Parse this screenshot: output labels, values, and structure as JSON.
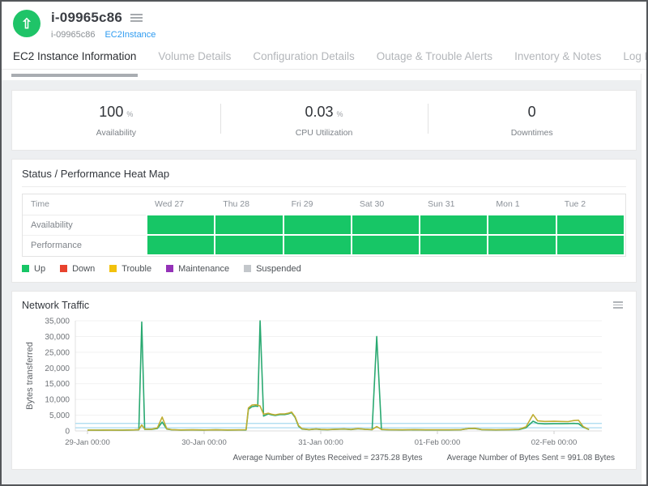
{
  "header": {
    "title": "i-09965c86",
    "subtitle": "i-09965c86",
    "type_link": "EC2Instance"
  },
  "tabs": [
    {
      "label": "EC2 Instance Information",
      "active": true
    },
    {
      "label": "Volume Details",
      "active": false
    },
    {
      "label": "Configuration Details",
      "active": false
    },
    {
      "label": "Outage & Trouble Alerts",
      "active": false
    },
    {
      "label": "Inventory & Notes",
      "active": false
    },
    {
      "label": "Log Report",
      "active": false
    }
  ],
  "stats": [
    {
      "value": "100",
      "unit": "%",
      "label": "Availability"
    },
    {
      "value": "0.03",
      "unit": "%",
      "label": "CPU Utilization"
    },
    {
      "value": "0",
      "unit": "",
      "label": "Downtimes"
    }
  ],
  "heatmap": {
    "title": "Status / Performance Heat Map",
    "columns": [
      "Time",
      "Wed 27",
      "Thu 28",
      "Fri 29",
      "Sat 30",
      "Sun 31",
      "Mon 1",
      "Tue 2"
    ],
    "rows": [
      {
        "label": "Availability",
        "cells": [
          "Up",
          "Up",
          "Up",
          "Up",
          "Up",
          "Up",
          "Up"
        ]
      },
      {
        "label": "Performance",
        "cells": [
          "Up",
          "Up",
          "Up",
          "Up",
          "Up",
          "Up",
          "Up"
        ]
      }
    ],
    "legend": [
      {
        "label": "Up",
        "color": "#17c666"
      },
      {
        "label": "Down",
        "color": "#e8432e"
      },
      {
        "label": "Trouble",
        "color": "#f2c10d"
      },
      {
        "label": "Maintenance",
        "color": "#9432b8"
      },
      {
        "label": "Suspended",
        "color": "#c3c7cb"
      }
    ]
  },
  "network": {
    "title": "Network Traffic",
    "avg_received_text": "Average Number of Bytes Received = 2375.28 Bytes",
    "avg_sent_text": "Average Number of Bytes Sent = 991.08 Bytes"
  },
  "chart_data": {
    "type": "line",
    "title": "Network Traffic",
    "xlabel": "",
    "ylabel": "Bytes transferred",
    "ylim": [
      0,
      35000
    ],
    "ytick_step": 5000,
    "grid": true,
    "x_ticks": [
      "29-Jan 00:00",
      "30-Jan 00:00",
      "31-Jan 00:00",
      "01-Feb 00:00",
      "02-Feb 00:00"
    ],
    "x_unit_days": true,
    "avg_lines": [
      {
        "name": "avg-bytes-received",
        "value": 2375.28,
        "color": "#a7daef"
      },
      {
        "name": "avg-bytes-sent",
        "value": 991.08,
        "color": "#a7daef"
      }
    ],
    "series": [
      {
        "name": "Bytes Received",
        "color": "#2aa971",
        "points": [
          [
            0.0,
            250
          ],
          [
            0.1,
            230
          ],
          [
            0.2,
            260
          ],
          [
            0.3,
            240
          ],
          [
            0.4,
            300
          ],
          [
            0.44,
            350
          ],
          [
            0.465,
            34600
          ],
          [
            0.49,
            500
          ],
          [
            0.55,
            500
          ],
          [
            0.6,
            800
          ],
          [
            0.64,
            2800
          ],
          [
            0.68,
            600
          ],
          [
            0.72,
            350
          ],
          [
            0.8,
            280
          ],
          [
            0.9,
            320
          ],
          [
            1.0,
            280
          ],
          [
            1.1,
            330
          ],
          [
            1.2,
            280
          ],
          [
            1.3,
            300
          ],
          [
            1.36,
            320
          ],
          [
            1.38,
            6900
          ],
          [
            1.41,
            7700
          ],
          [
            1.44,
            7900
          ],
          [
            1.46,
            7800
          ],
          [
            1.48,
            35000
          ],
          [
            1.51,
            4700
          ],
          [
            1.55,
            5400
          ],
          [
            1.58,
            5100
          ],
          [
            1.61,
            4900
          ],
          [
            1.65,
            5200
          ],
          [
            1.69,
            5200
          ],
          [
            1.72,
            5400
          ],
          [
            1.75,
            5800
          ],
          [
            1.78,
            4300
          ],
          [
            1.81,
            1500
          ],
          [
            1.84,
            600
          ],
          [
            1.9,
            400
          ],
          [
            1.96,
            600
          ],
          [
            2.0,
            450
          ],
          [
            2.06,
            400
          ],
          [
            2.12,
            500
          ],
          [
            2.2,
            600
          ],
          [
            2.26,
            450
          ],
          [
            2.32,
            700
          ],
          [
            2.38,
            500
          ],
          [
            2.44,
            400
          ],
          [
            2.48,
            30000
          ],
          [
            2.52,
            450
          ],
          [
            2.58,
            350
          ],
          [
            2.7,
            300
          ],
          [
            2.8,
            350
          ],
          [
            2.9,
            300
          ],
          [
            3.0,
            320
          ],
          [
            3.1,
            300
          ],
          [
            3.2,
            350
          ],
          [
            3.27,
            750
          ],
          [
            3.32,
            800
          ],
          [
            3.38,
            400
          ],
          [
            3.5,
            320
          ],
          [
            3.6,
            350
          ],
          [
            3.7,
            450
          ],
          [
            3.76,
            1000
          ],
          [
            3.82,
            3100
          ],
          [
            3.86,
            2400
          ],
          [
            3.92,
            2250
          ],
          [
            4.0,
            2300
          ],
          [
            4.06,
            2300
          ],
          [
            4.12,
            2350
          ],
          [
            4.17,
            2400
          ],
          [
            4.21,
            2300
          ],
          [
            4.25,
            1200
          ],
          [
            4.3,
            400
          ]
        ]
      },
      {
        "name": "Bytes Sent",
        "color": "#bfae33",
        "points": [
          [
            0.0,
            280
          ],
          [
            0.1,
            260
          ],
          [
            0.2,
            290
          ],
          [
            0.3,
            270
          ],
          [
            0.4,
            330
          ],
          [
            0.44,
            400
          ],
          [
            0.465,
            1900
          ],
          [
            0.49,
            600
          ],
          [
            0.55,
            550
          ],
          [
            0.6,
            1000
          ],
          [
            0.64,
            4400
          ],
          [
            0.68,
            700
          ],
          [
            0.72,
            400
          ],
          [
            0.8,
            320
          ],
          [
            0.9,
            360
          ],
          [
            1.0,
            320
          ],
          [
            1.1,
            370
          ],
          [
            1.2,
            320
          ],
          [
            1.3,
            340
          ],
          [
            1.36,
            380
          ],
          [
            1.38,
            7300
          ],
          [
            1.41,
            8200
          ],
          [
            1.44,
            8300
          ],
          [
            1.46,
            8200
          ],
          [
            1.48,
            7900
          ],
          [
            1.51,
            5300
          ],
          [
            1.55,
            5600
          ],
          [
            1.58,
            5300
          ],
          [
            1.61,
            5100
          ],
          [
            1.65,
            5400
          ],
          [
            1.69,
            5400
          ],
          [
            1.72,
            5600
          ],
          [
            1.75,
            6000
          ],
          [
            1.78,
            4500
          ],
          [
            1.81,
            1700
          ],
          [
            1.84,
            700
          ],
          [
            1.9,
            450
          ],
          [
            1.96,
            650
          ],
          [
            2.0,
            500
          ],
          [
            2.06,
            450
          ],
          [
            2.12,
            550
          ],
          [
            2.2,
            650
          ],
          [
            2.26,
            500
          ],
          [
            2.32,
            750
          ],
          [
            2.38,
            550
          ],
          [
            2.44,
            450
          ],
          [
            2.48,
            1400
          ],
          [
            2.52,
            500
          ],
          [
            2.58,
            400
          ],
          [
            2.7,
            350
          ],
          [
            2.8,
            400
          ],
          [
            2.9,
            350
          ],
          [
            3.0,
            370
          ],
          [
            3.1,
            350
          ],
          [
            3.2,
            400
          ],
          [
            3.27,
            800
          ],
          [
            3.32,
            850
          ],
          [
            3.38,
            450
          ],
          [
            3.5,
            370
          ],
          [
            3.6,
            400
          ],
          [
            3.7,
            550
          ],
          [
            3.76,
            1300
          ],
          [
            3.82,
            5200
          ],
          [
            3.86,
            3200
          ],
          [
            3.92,
            3000
          ],
          [
            4.0,
            3050
          ],
          [
            4.06,
            3000
          ],
          [
            4.12,
            2950
          ],
          [
            4.17,
            3300
          ],
          [
            4.21,
            3400
          ],
          [
            4.25,
            1400
          ],
          [
            4.3,
            450
          ]
        ]
      }
    ]
  }
}
